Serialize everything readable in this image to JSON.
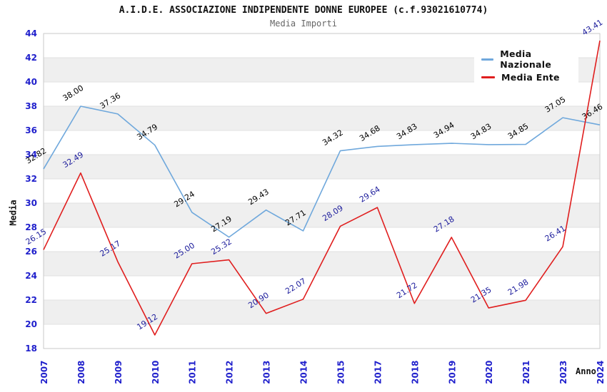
{
  "header": {
    "title": "A.I.D.E. ASSOCIAZIONE INDIPENDENTE DONNE EUROPEE (c.f.93021610774)",
    "subtitle": "Media Importi"
  },
  "legend": {
    "items": [
      {
        "label": "Media Nazionale",
        "color": "#6fa8dc"
      },
      {
        "label": "Media Ente",
        "color": "#e01e1e"
      }
    ]
  },
  "chart_data": {
    "type": "line",
    "title": "A.I.D.E. ASSOCIAZIONE INDIPENDENTE DONNE EUROPEE (c.f.93021610774)",
    "subtitle": "Media Importi",
    "xlabel": "Anno",
    "ylabel": "Media",
    "categories": [
      "2007",
      "2008",
      "2009",
      "2010",
      "2011",
      "2012",
      "2013",
      "2014",
      "2015",
      "2017",
      "2018",
      "2019",
      "2020",
      "2021",
      "2023",
      "2024"
    ],
    "series": [
      {
        "name": "Media Nazionale",
        "color": "#6fa8dc",
        "label_color": "#000000",
        "values": [
          32.82,
          38.0,
          37.36,
          34.79,
          29.24,
          27.19,
          29.43,
          27.71,
          34.32,
          34.68,
          34.83,
          34.94,
          34.83,
          34.85,
          37.05,
          36.46
        ]
      },
      {
        "name": "Media Ente",
        "color": "#e01e1e",
        "label_color": "#1c1c9c",
        "values": [
          26.15,
          32.49,
          25.17,
          19.12,
          25.0,
          25.32,
          20.9,
          22.07,
          28.09,
          29.64,
          21.72,
          27.18,
          21.35,
          21.98,
          26.41,
          43.41
        ]
      }
    ],
    "ylim": [
      18,
      44
    ],
    "ytick_step": 2,
    "grid": "horizontal-bands",
    "band_colors": [
      "#ffffff",
      "#efefef"
    ],
    "gridline_color": "#e2e2e2",
    "border_color": "#c9c9c9",
    "axis_text_color": "#2020cc",
    "label_decimals": 2,
    "legend_position": "top-right"
  }
}
